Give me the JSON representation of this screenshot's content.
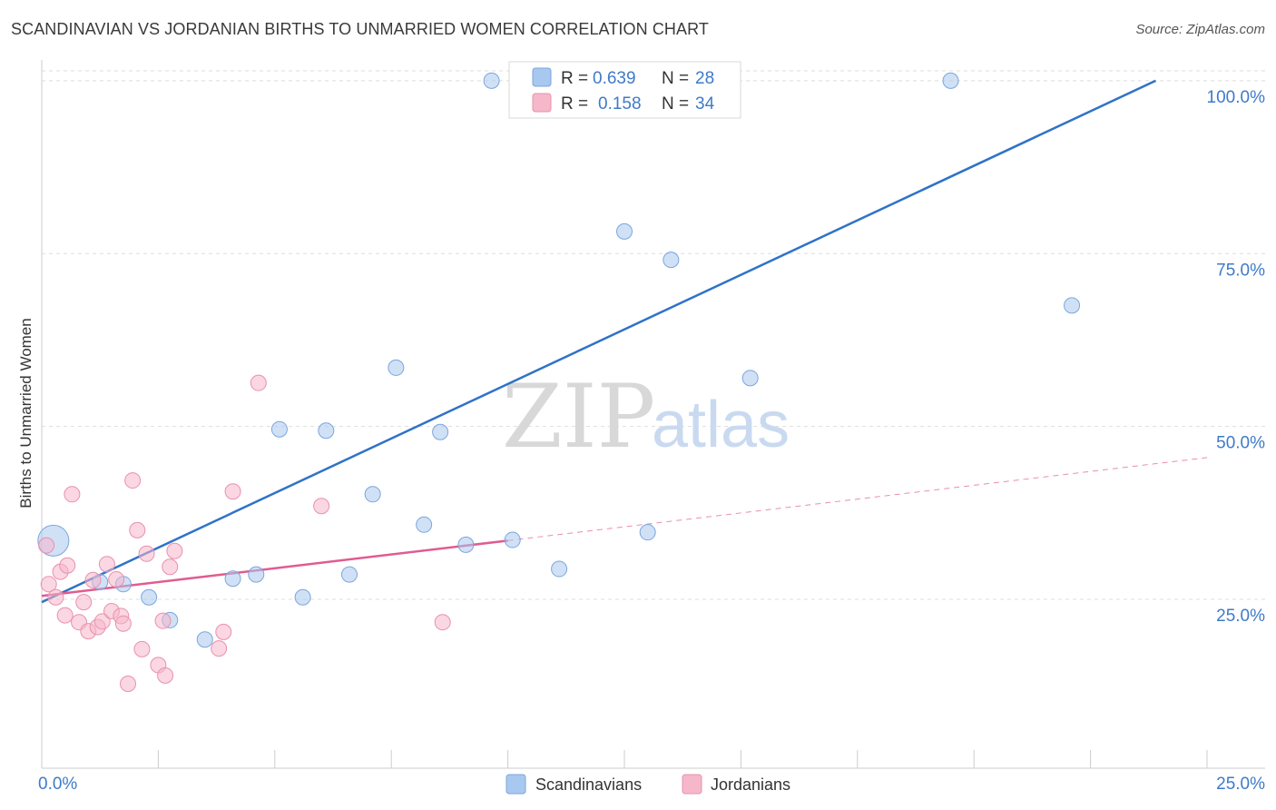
{
  "title": "SCANDINAVIAN VS JORDANIAN BIRTHS TO UNMARRIED WOMEN CORRELATION CHART",
  "source": "Source: ZipAtlas.com",
  "watermark": {
    "zip": "ZIP",
    "atlas": "atlas"
  },
  "chart_data": {
    "type": "scatter",
    "title": "SCANDINAVIAN VS JORDANIAN BIRTHS TO UNMARRIED WOMEN CORRELATION CHART",
    "xlabel": "",
    "ylabel": "Births to Unmarried Women",
    "xlim": [
      0,
      25
    ],
    "ylim": [
      4,
      103
    ],
    "x_tick_labels": [
      "0.0%",
      "25.0%"
    ],
    "y_ticks": [
      25,
      50,
      75,
      100
    ],
    "y_tick_labels": [
      "25.0%",
      "50.0%",
      "75.0%",
      "100.0%"
    ],
    "grid": true,
    "legend_top": [
      {
        "r_label": "R =",
        "r_value": "0.639",
        "n_label": "N =",
        "n_value": "28",
        "color": "#a9c8ef"
      },
      {
        "r_label": "R =",
        "r_value": "0.158",
        "n_label": "N =",
        "n_value": "34",
        "color": "#f6b7cb"
      }
    ],
    "series": [
      {
        "name": "Scandinavians",
        "color": "#a9c8ef",
        "stroke": "#7aa6dd",
        "trend_color": "#2f72c8",
        "trend": {
          "x0": 0.0,
          "y0": 24.6,
          "x1": 23.9,
          "y1": 100.0
        },
        "points": [
          {
            "x": 0.25,
            "y": 33.5,
            "r": 17
          },
          {
            "x": 1.25,
            "y": 27.5
          },
          {
            "x": 1.75,
            "y": 27.2
          },
          {
            "x": 2.3,
            "y": 25.3
          },
          {
            "x": 2.75,
            "y": 22.0
          },
          {
            "x": 3.5,
            "y": 19.2
          },
          {
            "x": 4.1,
            "y": 28.0
          },
          {
            "x": 4.6,
            "y": 28.6
          },
          {
            "x": 5.1,
            "y": 49.6
          },
          {
            "x": 5.6,
            "y": 25.3
          },
          {
            "x": 6.1,
            "y": 49.4
          },
          {
            "x": 6.6,
            "y": 28.6
          },
          {
            "x": 7.1,
            "y": 40.2
          },
          {
            "x": 7.6,
            "y": 58.5
          },
          {
            "x": 8.2,
            "y": 35.8
          },
          {
            "x": 8.55,
            "y": 49.2
          },
          {
            "x": 9.1,
            "y": 32.9
          },
          {
            "x": 9.65,
            "y": 100.0
          },
          {
            "x": 10.1,
            "y": 33.6
          },
          {
            "x": 10.55,
            "y": 100.0
          },
          {
            "x": 11.1,
            "y": 29.4
          },
          {
            "x": 11.6,
            "y": 100.0
          },
          {
            "x": 12.5,
            "y": 78.2
          },
          {
            "x": 13.0,
            "y": 34.7
          },
          {
            "x": 13.5,
            "y": 74.1
          },
          {
            "x": 15.2,
            "y": 57.0
          },
          {
            "x": 19.5,
            "y": 100.0
          },
          {
            "x": 22.1,
            "y": 67.5
          }
        ]
      },
      {
        "name": "Jordanians",
        "color": "#f6b7cb",
        "stroke": "#ea90ad",
        "trend_color": "#e05c8f",
        "trend": {
          "x0": 0.0,
          "y0": 25.5,
          "x1": 10.0,
          "y1": 33.5
        },
        "trend_ext": {
          "x0": 10.0,
          "y0": 33.5,
          "x1": 25.0,
          "y1": 45.5
        },
        "points": [
          {
            "x": 0.1,
            "y": 32.8
          },
          {
            "x": 0.15,
            "y": 27.2
          },
          {
            "x": 0.3,
            "y": 25.3
          },
          {
            "x": 0.4,
            "y": 29.0
          },
          {
            "x": 0.5,
            "y": 22.7
          },
          {
            "x": 0.55,
            "y": 29.9
          },
          {
            "x": 0.65,
            "y": 40.2
          },
          {
            "x": 0.8,
            "y": 21.7
          },
          {
            "x": 0.9,
            "y": 24.6
          },
          {
            "x": 1.0,
            "y": 20.4
          },
          {
            "x": 1.1,
            "y": 27.8
          },
          {
            "x": 1.2,
            "y": 21.0
          },
          {
            "x": 1.3,
            "y": 21.8
          },
          {
            "x": 1.4,
            "y": 30.1
          },
          {
            "x": 1.5,
            "y": 23.3
          },
          {
            "x": 1.6,
            "y": 27.9
          },
          {
            "x": 1.7,
            "y": 22.6
          },
          {
            "x": 1.75,
            "y": 21.5
          },
          {
            "x": 1.85,
            "y": 12.8
          },
          {
            "x": 1.95,
            "y": 42.2
          },
          {
            "x": 2.05,
            "y": 35.0
          },
          {
            "x": 2.15,
            "y": 17.8
          },
          {
            "x": 2.25,
            "y": 31.6
          },
          {
            "x": 2.5,
            "y": 15.5
          },
          {
            "x": 2.6,
            "y": 21.9
          },
          {
            "x": 2.65,
            "y": 14.0
          },
          {
            "x": 2.75,
            "y": 29.7
          },
          {
            "x": 2.85,
            "y": 32.0
          },
          {
            "x": 3.8,
            "y": 17.9
          },
          {
            "x": 3.9,
            "y": 20.3
          },
          {
            "x": 4.1,
            "y": 40.6
          },
          {
            "x": 4.65,
            "y": 56.3
          },
          {
            "x": 6.0,
            "y": 38.5
          },
          {
            "x": 8.6,
            "y": 21.7
          }
        ]
      }
    ]
  }
}
